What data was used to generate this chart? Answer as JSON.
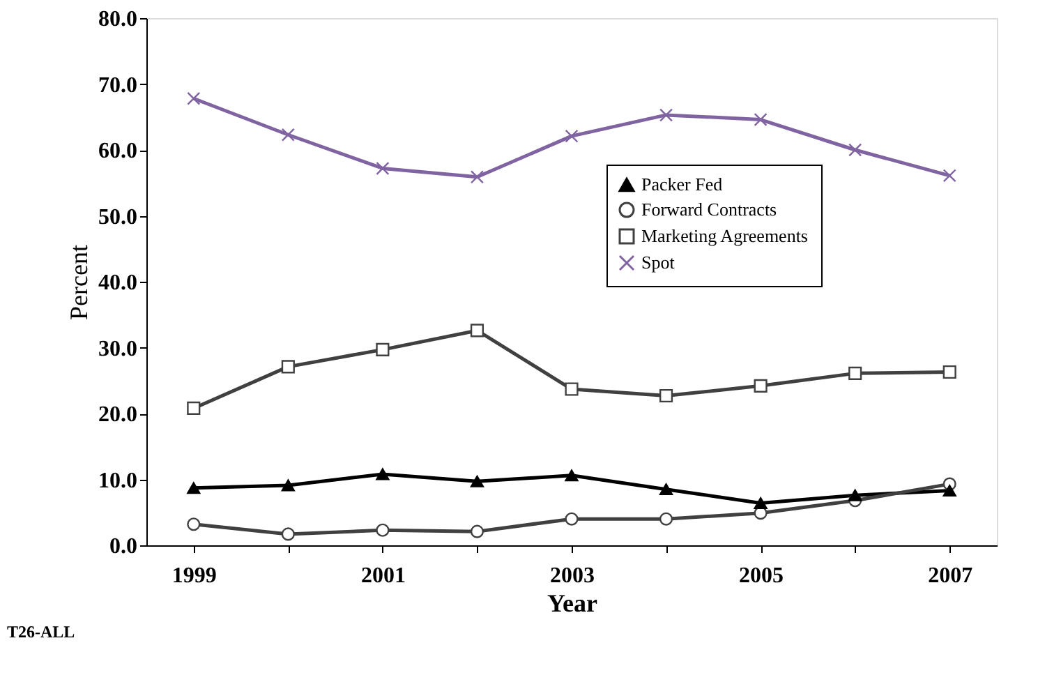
{
  "chart_data": {
    "type": "line",
    "xlabel": "Year",
    "ylabel": "Percent",
    "categories": [
      "1999",
      null,
      "2001",
      null,
      "2003",
      null,
      "2005",
      null,
      "2007"
    ],
    "ylim": [
      0,
      80
    ],
    "yticks": [
      {
        "value": 0,
        "label": "0.0"
      },
      {
        "value": 10,
        "label": "10.0"
      },
      {
        "value": 20,
        "label": "20.0"
      },
      {
        "value": 30,
        "label": "30.0"
      },
      {
        "value": 40,
        "label": "40.0"
      },
      {
        "value": 50,
        "label": "50.0"
      },
      {
        "value": 60,
        "label": "60.0"
      },
      {
        "value": 70,
        "label": "70.0"
      },
      {
        "value": 80,
        "label": "80.0"
      }
    ],
    "series": [
      {
        "name": "Packer Fed",
        "color": "#000000",
        "marker": "triangle",
        "values": [
          8.7,
          9.1,
          10.8,
          9.7,
          10.6,
          8.5,
          6.4,
          7.6,
          8.3
        ]
      },
      {
        "name": "Forward Contracts",
        "color": "#404040",
        "marker": "circle",
        "values": [
          3.2,
          1.7,
          2.3,
          2.1,
          4.0,
          4.0,
          4.9,
          6.8,
          9.3
        ]
      },
      {
        "name": "Marketing Agreements",
        "color": "#404040",
        "marker": "square",
        "values": [
          20.8,
          27.1,
          29.7,
          32.6,
          23.7,
          22.7,
          24.2,
          26.1,
          26.3
        ]
      },
      {
        "name": "Spot",
        "color": "#8064a2",
        "marker": "cross",
        "values": [
          67.8,
          62.3,
          57.2,
          55.9,
          62.1,
          65.3,
          64.6,
          60.0,
          56.1
        ]
      }
    ],
    "legend": "top right",
    "grid": false,
    "annotations": [
      "T26-ALL"
    ]
  }
}
